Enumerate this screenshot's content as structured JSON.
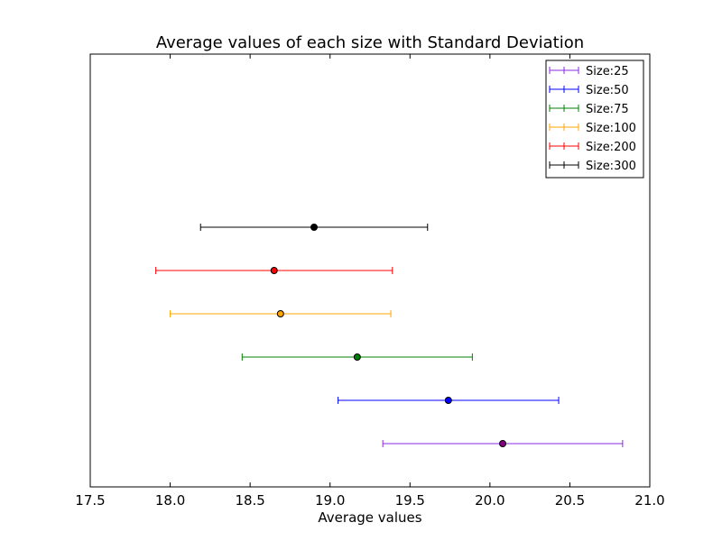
{
  "chart_data": {
    "type": "errorbar",
    "title": "Average values of each size with Standard Deviation",
    "xlabel": "Average values",
    "ylabel": "",
    "xlim": [
      17.5,
      21.0
    ],
    "x_ticks": [
      "17.5",
      "18.0",
      "18.5",
      "19.0",
      "19.5",
      "20.0",
      "20.5",
      "21.0"
    ],
    "y_ticks_visible": false,
    "grid": false,
    "legend_position": "top-right",
    "series": [
      {
        "name": "Size:25",
        "color": "#8a2be2",
        "marker_color": "#800080",
        "mean": 20.08,
        "std": 0.75,
        "y": 1
      },
      {
        "name": "Size:50",
        "color": "#0000ff",
        "marker_color": "#0000ff",
        "mean": 19.74,
        "std": 0.69,
        "y": 2
      },
      {
        "name": "Size:75",
        "color": "#008000",
        "marker_color": "#008000",
        "mean": 19.17,
        "std": 0.72,
        "y": 3
      },
      {
        "name": "Size:100",
        "color": "#ffa500",
        "marker_color": "#ffa500",
        "mean": 18.69,
        "std": 0.69,
        "y": 4
      },
      {
        "name": "Size:200",
        "color": "#ff0000",
        "marker_color": "#ff0000",
        "mean": 18.65,
        "std": 0.74,
        "y": 5
      },
      {
        "name": "Size:300",
        "color": "#000000",
        "marker_color": "#000000",
        "mean": 18.9,
        "std": 0.71,
        "y": 6
      }
    ]
  }
}
